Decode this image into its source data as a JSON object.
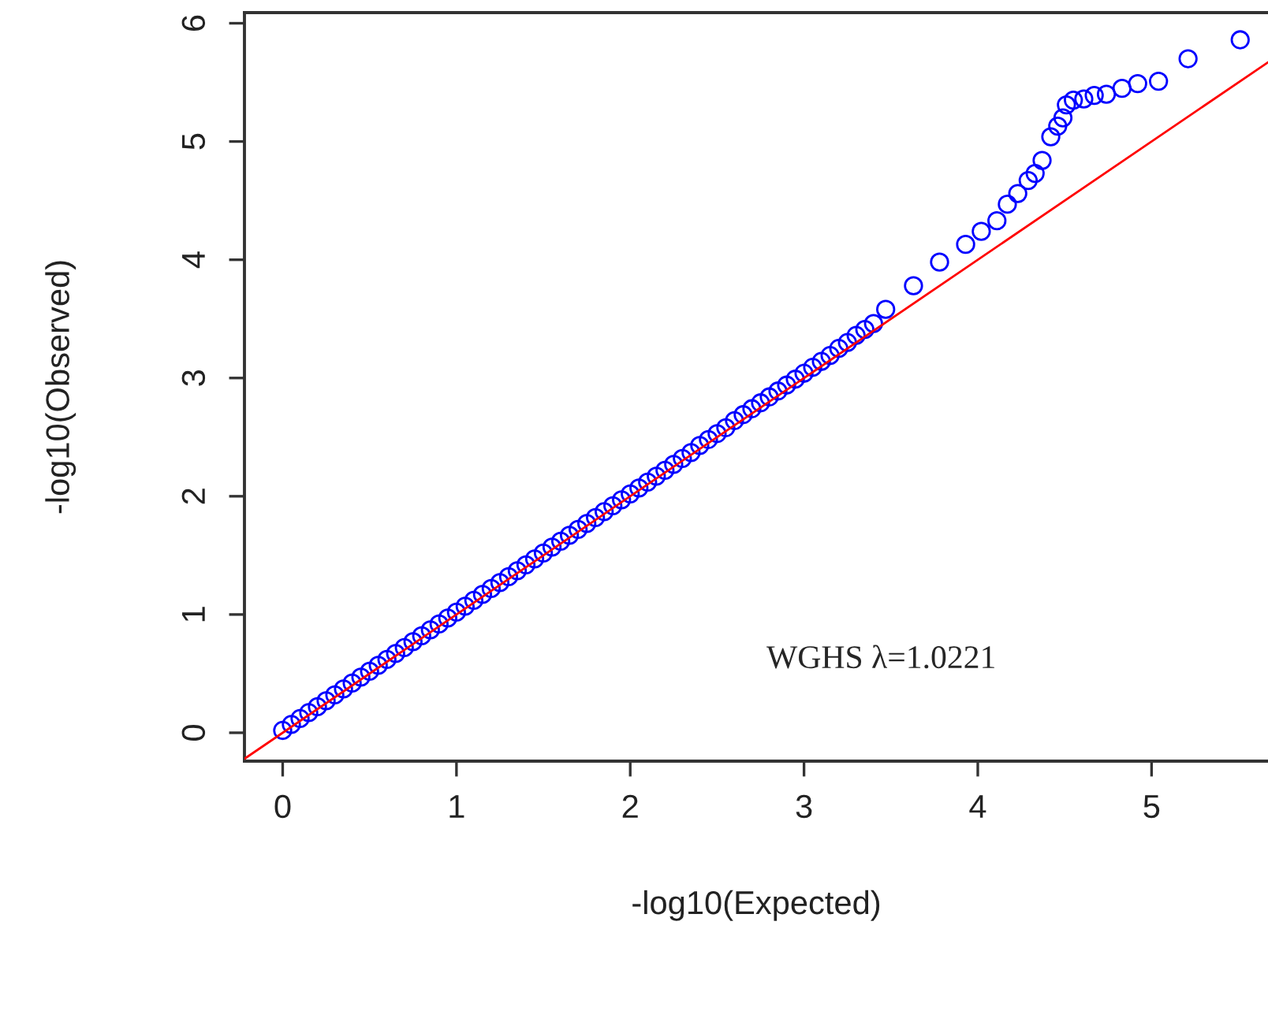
{
  "chart_data": {
    "type": "scatter",
    "xlabel": "-log10(Expected)",
    "ylabel": "-log10(Observed)",
    "xlim": [
      -0.22,
      5.67
    ],
    "ylim": [
      -0.24,
      6.09
    ],
    "xticks": [
      0,
      1,
      2,
      3,
      4,
      5
    ],
    "yticks": [
      0,
      1,
      2,
      3,
      4,
      5,
      6
    ],
    "marker": "circle",
    "grid": false,
    "legend": false,
    "annotations": [
      "WGHS λ=1.0221"
    ],
    "series": [
      {
        "color": "#0000ff",
        "x": [
          0,
          0.05,
          0.1,
          0.15,
          0.2,
          0.25,
          0.3,
          0.35,
          0.4,
          0.45,
          0.5,
          0.55,
          0.6,
          0.65,
          0.7,
          0.75,
          0.8,
          0.85,
          0.9,
          0.95,
          1.0,
          1.05,
          1.1,
          1.15,
          1.2,
          1.25,
          1.3,
          1.35,
          1.4,
          1.45,
          1.5,
          1.55,
          1.6,
          1.65,
          1.7,
          1.75,
          1.8,
          1.85,
          1.9,
          1.95,
          2.0,
          2.05,
          2.1,
          2.15,
          2.2,
          2.25,
          2.3,
          2.35,
          2.4,
          2.45,
          2.5,
          2.55,
          2.6,
          2.65,
          2.7,
          2.75,
          2.8,
          2.85,
          2.9,
          2.95,
          3.0,
          3.05,
          3.1,
          3.15,
          3.2,
          3.25,
          3.3,
          3.35,
          3.4,
          3.47,
          3.63,
          3.78,
          3.93,
          4.02,
          4.11,
          4.17,
          4.23,
          4.29,
          4.33,
          4.37,
          4.42,
          4.46,
          4.49,
          4.51,
          4.55,
          4.61,
          4.67,
          4.74,
          4.83,
          4.92,
          5.04,
          5.21,
          5.51
        ],
        "values": [
          0.02,
          0.07,
          0.12,
          0.17,
          0.22,
          0.27,
          0.32,
          0.37,
          0.42,
          0.47,
          0.52,
          0.57,
          0.62,
          0.67,
          0.72,
          0.77,
          0.82,
          0.87,
          0.92,
          0.97,
          1.02,
          1.07,
          1.12,
          1.17,
          1.22,
          1.27,
          1.32,
          1.37,
          1.42,
          1.47,
          1.52,
          1.57,
          1.62,
          1.67,
          1.72,
          1.77,
          1.82,
          1.87,
          1.92,
          1.97,
          2.02,
          2.07,
          2.12,
          2.17,
          2.22,
          2.27,
          2.32,
          2.37,
          2.43,
          2.48,
          2.53,
          2.58,
          2.64,
          2.69,
          2.74,
          2.79,
          2.84,
          2.89,
          2.94,
          2.99,
          3.04,
          3.09,
          3.14,
          3.19,
          3.25,
          3.3,
          3.36,
          3.41,
          3.46,
          3.58,
          3.78,
          3.98,
          4.13,
          4.24,
          4.33,
          4.47,
          4.56,
          4.67,
          4.73,
          4.84,
          5.04,
          5.13,
          5.2,
          5.31,
          5.35,
          5.36,
          5.39,
          5.4,
          5.45,
          5.49,
          5.51,
          5.7,
          5.86
        ]
      },
      {
        "type": "line",
        "color": "#ff0000",
        "x": [
          -0.22,
          5.67
        ],
        "values": [
          -0.22,
          5.67
        ],
        "marker": "none",
        "line_style": "solid"
      }
    ]
  }
}
